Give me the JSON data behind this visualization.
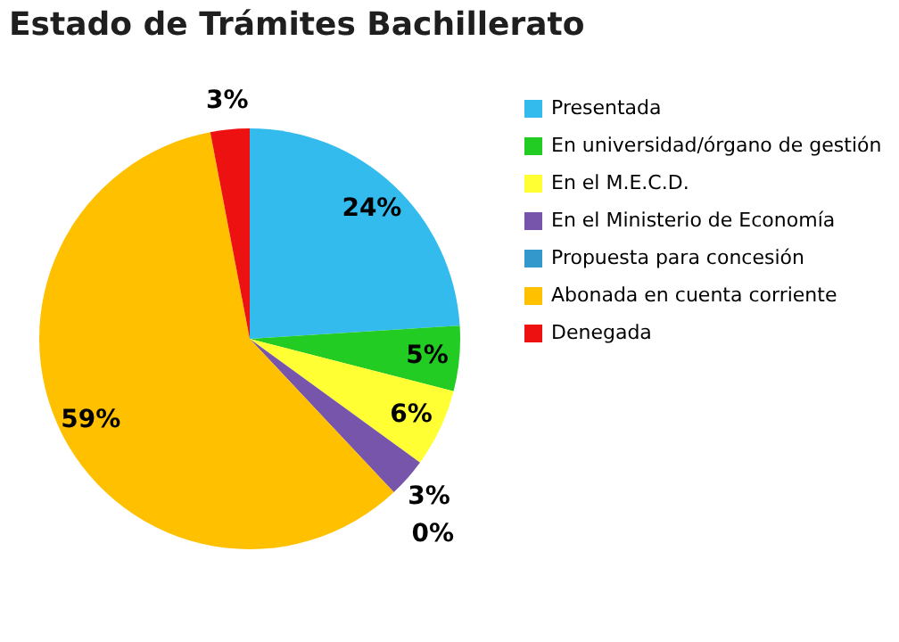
{
  "chart_data": {
    "type": "pie",
    "title": "Estado de Trámites Bachillerato",
    "categories": [
      "Presentada",
      "En universidad/órgano de gestión",
      "En el M.E.C.D.",
      "En el Ministerio de Economía",
      "Propuesta para concesión",
      "Abonada en cuenta corriente",
      "Denegada"
    ],
    "values": [
      24,
      5,
      6,
      3,
      0,
      59,
      3
    ],
    "value_labels": [
      "24%",
      "5%",
      "6%",
      "3%",
      "0%",
      "59%",
      "3%"
    ],
    "colors": [
      "#33bbee",
      "#22cc22",
      "#ffff33",
      "#7755aa",
      "#3399cc",
      "#ffc000",
      "#ee1111"
    ],
    "legend": "right"
  }
}
